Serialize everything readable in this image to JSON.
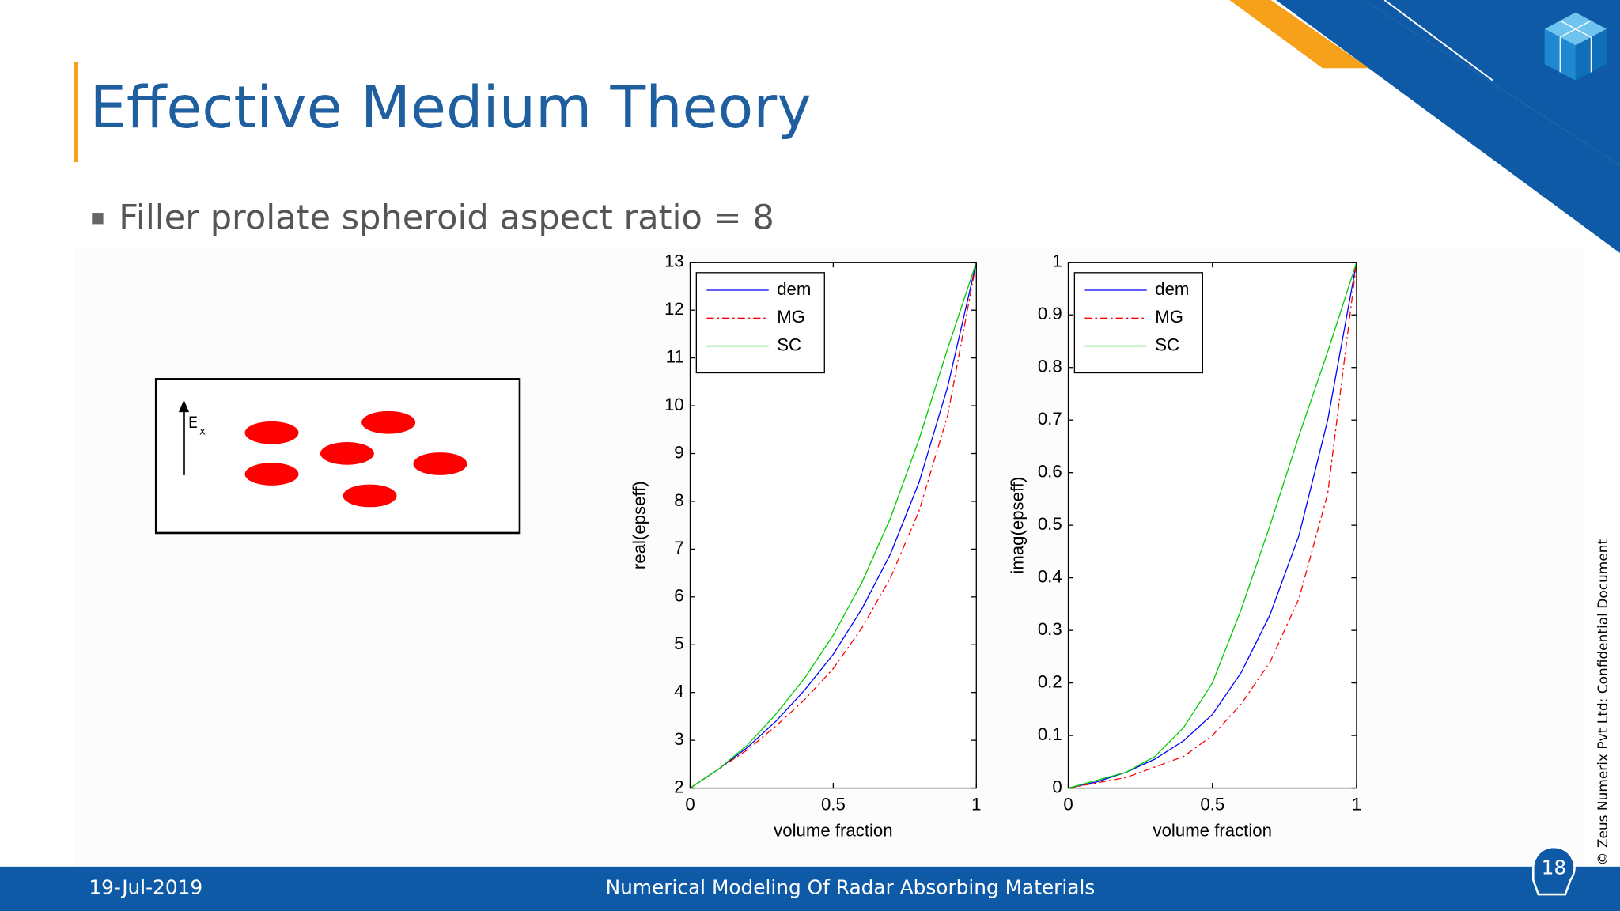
{
  "header": {
    "title": "Effective Medium Theory"
  },
  "bullet": "Filler prolate spheroid aspect ratio = 8",
  "diagram": {
    "field_label": "E",
    "field_subscript": "x"
  },
  "chart_data": [
    {
      "type": "line",
      "xlabel": "volume fraction",
      "ylabel": "real(epseff)",
      "x": [
        0,
        0.1,
        0.2,
        0.3,
        0.4,
        0.5,
        0.6,
        0.7,
        0.8,
        0.9,
        1
      ],
      "xlim": [
        0,
        1
      ],
      "xticks": [
        0,
        0.5,
        1
      ],
      "ylim": [
        2,
        13
      ],
      "yticks": [
        2,
        3,
        4,
        5,
        6,
        7,
        8,
        9,
        10,
        11,
        12,
        13
      ],
      "legend": "upper left",
      "series": [
        {
          "name": "dem",
          "color": "#0000ff",
          "dash": "solid",
          "values": [
            2,
            2.4,
            2.85,
            3.4,
            4.05,
            4.8,
            5.75,
            6.9,
            8.4,
            10.4,
            13
          ]
        },
        {
          "name": "MG",
          "color": "#ff0000",
          "dash": "dashdot",
          "values": [
            2,
            2.4,
            2.8,
            3.3,
            3.85,
            4.5,
            5.35,
            6.4,
            7.8,
            9.8,
            13
          ]
        },
        {
          "name": "SC",
          "color": "#00cc00",
          "dash": "solid",
          "values": [
            2,
            2.4,
            2.9,
            3.55,
            4.3,
            5.2,
            6.3,
            7.65,
            9.3,
            11.2,
            13
          ]
        }
      ]
    },
    {
      "type": "line",
      "xlabel": "volume fraction",
      "ylabel": "imag(epseff)",
      "x": [
        0,
        0.1,
        0.2,
        0.3,
        0.4,
        0.5,
        0.6,
        0.7,
        0.8,
        0.9,
        1
      ],
      "xlim": [
        0,
        1
      ],
      "xticks": [
        0,
        0.5,
        1
      ],
      "ylim": [
        0,
        1
      ],
      "yticks": [
        0,
        0.1,
        0.2,
        0.3,
        0.4,
        0.5,
        0.6,
        0.7,
        0.8,
        0.9,
        1
      ],
      "legend": "upper left",
      "series": [
        {
          "name": "dem",
          "color": "#0000ff",
          "dash": "solid",
          "values": [
            0,
            0.012,
            0.03,
            0.055,
            0.09,
            0.14,
            0.22,
            0.33,
            0.48,
            0.7,
            1
          ]
        },
        {
          "name": "MG",
          "color": "#ff0000",
          "dash": "dashdot",
          "values": [
            0,
            0.01,
            0.02,
            0.04,
            0.06,
            0.1,
            0.16,
            0.24,
            0.36,
            0.56,
            1
          ]
        },
        {
          "name": "SC",
          "color": "#00cc00",
          "dash": "solid",
          "values": [
            0,
            0.015,
            0.03,
            0.06,
            0.115,
            0.2,
            0.34,
            0.5,
            0.67,
            0.83,
            1
          ]
        }
      ]
    }
  ],
  "footer": {
    "date": "19-Jul-2019",
    "title": "Numerical Modeling Of Radar Absorbing Materials",
    "page": "18"
  },
  "side_note": "© Zeus Numerix Pvt Ltd: Confidential Document"
}
